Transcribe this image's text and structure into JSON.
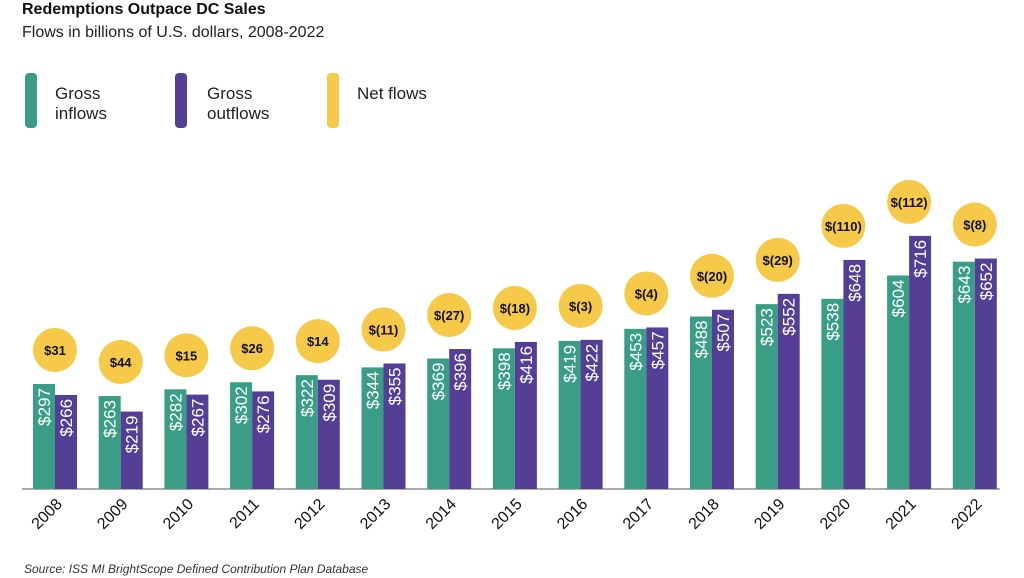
{
  "chart_data": {
    "type": "bar",
    "title": "Redemptions Outpace DC Sales",
    "subtitle": "Flows in billions of U.S. dollars, 2008-2022",
    "source": "Source: ISS MI BrightScope Defined Contribution Plan Database",
    "categories": [
      "2008",
      "2009",
      "2010",
      "2011",
      "2012",
      "2013",
      "2014",
      "2015",
      "2016",
      "2017",
      "2018",
      "2019",
      "2020",
      "2021",
      "2022"
    ],
    "series": [
      {
        "name": "Gross inflows",
        "color": "#3a9e86",
        "values": [
          297,
          263,
          282,
          302,
          322,
          344,
          369,
          398,
          419,
          453,
          488,
          523,
          538,
          604,
          643
        ],
        "value_labels": [
          "$297",
          "$263",
          "$282",
          "$302",
          "$322",
          "$344",
          "$369",
          "$398",
          "$419",
          "$453",
          "$488",
          "$523",
          "$538",
          "$604",
          "$643"
        ]
      },
      {
        "name": "Gross outflows",
        "color": "#553f96",
        "values": [
          266,
          219,
          267,
          276,
          309,
          355,
          396,
          416,
          422,
          457,
          507,
          552,
          648,
          716,
          652
        ],
        "value_labels": [
          "$266",
          "$219",
          "$267",
          "$276",
          "$309",
          "$355",
          "$396",
          "$416",
          "$422",
          "$457",
          "$507",
          "$552",
          "$648",
          "$716",
          "$652"
        ]
      },
      {
        "name": "Net flows",
        "color": "#f7c948",
        "mark": "circle",
        "values": [
          31,
          44,
          15,
          26,
          14,
          -11,
          -27,
          -18,
          -3,
          -4,
          -20,
          -29,
          -110,
          -112,
          -8
        ],
        "value_labels": [
          "$31",
          "$44",
          "$15",
          "$26",
          "$14",
          "$(11)",
          "$(27)",
          "$(18)",
          "$(3)",
          "$(4)",
          "$(20)",
          "$(29)",
          "$(110)",
          "$(112)",
          "$(8)"
        ]
      }
    ]
  }
}
